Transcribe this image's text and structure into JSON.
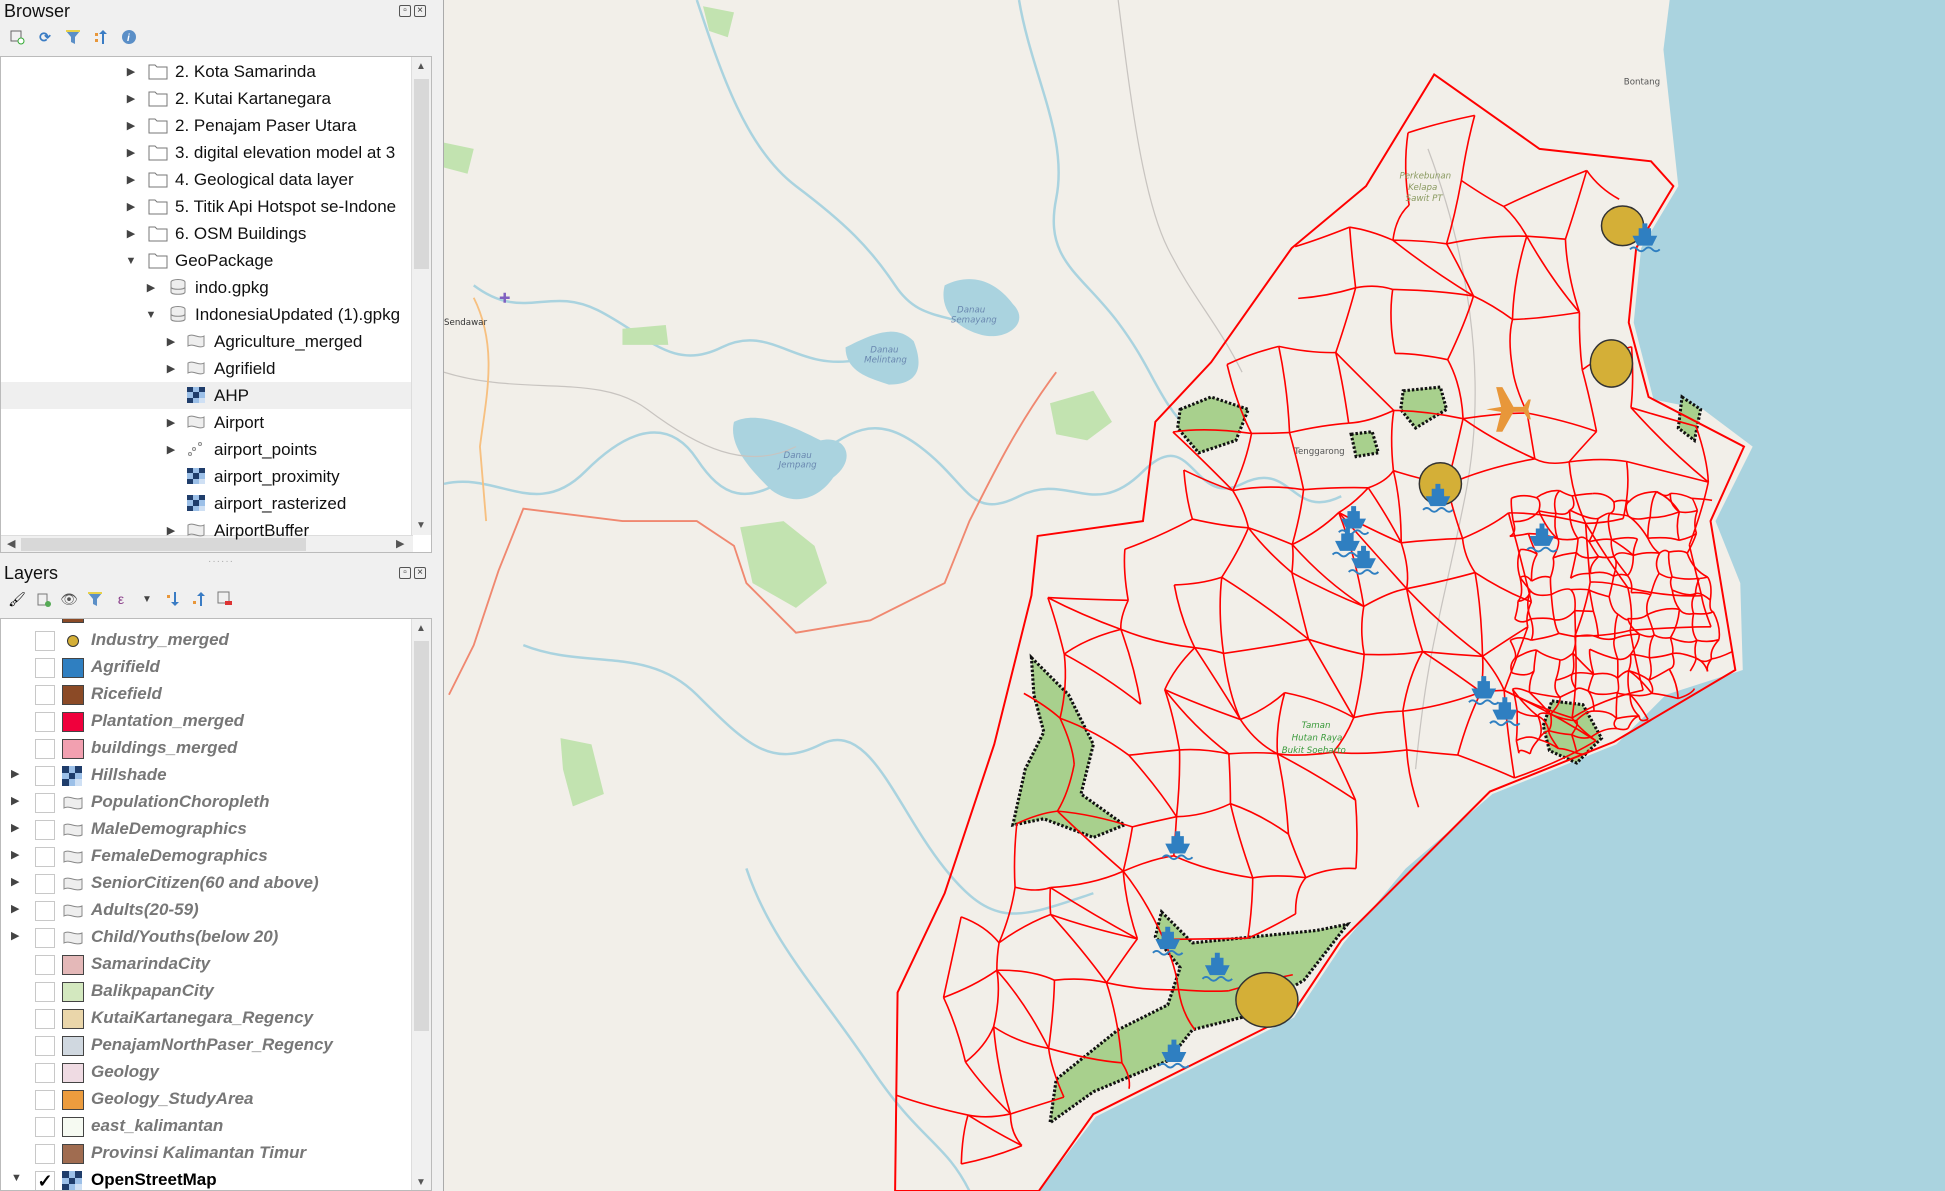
{
  "browser": {
    "title": "Browser",
    "toolbar": [
      "add-selected-icon",
      "refresh-icon",
      "filter-icon",
      "collapse-all-icon",
      "info-icon"
    ],
    "items": [
      {
        "label": "2. Kota Samarinda",
        "level": 0,
        "type": "folder",
        "expand": "closed"
      },
      {
        "label": "2. Kutai Kartanegara",
        "level": 0,
        "type": "folder",
        "expand": "closed"
      },
      {
        "label": "2. Penajam Paser Utara",
        "level": 0,
        "type": "folder",
        "expand": "closed"
      },
      {
        "label": "3. digital elevation model at 3",
        "level": 0,
        "type": "folder",
        "expand": "closed"
      },
      {
        "label": "4. Geological data layer",
        "level": 0,
        "type": "folder",
        "expand": "closed"
      },
      {
        "label": "5. Titik Api Hotspot se-Indone",
        "level": 0,
        "type": "folder",
        "expand": "closed"
      },
      {
        "label": "6. OSM Buildings",
        "level": 0,
        "type": "folder",
        "expand": "closed"
      },
      {
        "label": "GeoPackage",
        "level": 0,
        "type": "folder",
        "expand": "open"
      },
      {
        "label": "indo.gpkg",
        "level": 1,
        "type": "db",
        "expand": "closed"
      },
      {
        "label": "IndonesiaUpdated (1).gpkg",
        "level": 1,
        "type": "db",
        "expand": "open"
      },
      {
        "label": "Agriculture_merged",
        "level": 2,
        "type": "polygon",
        "expand": "closed"
      },
      {
        "label": "Agrifield",
        "level": 2,
        "type": "polygon",
        "expand": "closed"
      },
      {
        "label": "AHP",
        "level": 2,
        "type": "raster",
        "expand": "none",
        "selected": true
      },
      {
        "label": "Airport",
        "level": 2,
        "type": "polygon",
        "expand": "closed"
      },
      {
        "label": "airport_points",
        "level": 2,
        "type": "points",
        "expand": "closed"
      },
      {
        "label": "airport_proximity",
        "level": 2,
        "type": "raster",
        "expand": "none"
      },
      {
        "label": "airport_rasterized",
        "level": 2,
        "type": "raster",
        "expand": "none"
      },
      {
        "label": "AirportBuffer",
        "level": 2,
        "type": "polygon",
        "expand": "closed"
      }
    ]
  },
  "layers": {
    "title": "Layers",
    "toolbar": [
      "style-manager-icon",
      "add-group-icon",
      "visibility-icon",
      "filter-legend-icon",
      "expression-filter-icon",
      "dropdown-icon",
      "expand-all-icon",
      "collapse-all-icon",
      "remove-layer-icon"
    ],
    "items": [
      {
        "label": "Industry_merged",
        "symbol": "circle",
        "color": "#d4af37",
        "checked": false
      },
      {
        "label": "Agrifield",
        "symbol": "fill",
        "color": "#2f7fc1",
        "checked": false
      },
      {
        "label": "Ricefield",
        "symbol": "fill",
        "color": "#8b4a26",
        "checked": false
      },
      {
        "label": "Plantation_merged",
        "symbol": "fill",
        "color": "#f0003c",
        "checked": false
      },
      {
        "label": "buildings_merged",
        "symbol": "fill",
        "color": "#f2a0b0",
        "checked": false
      },
      {
        "label": "Hillshade",
        "symbol": "raster",
        "checked": false,
        "expand": "closed"
      },
      {
        "label": "PopulationChoropleth",
        "symbol": "group",
        "checked": false,
        "expand": "closed"
      },
      {
        "label": "MaleDemographics",
        "symbol": "group",
        "checked": false,
        "expand": "closed"
      },
      {
        "label": "FemaleDemographics",
        "symbol": "group",
        "checked": false,
        "expand": "closed"
      },
      {
        "label": "SeniorCitizen(60 and above)",
        "symbol": "group",
        "checked": false,
        "expand": "closed"
      },
      {
        "label": "Adults(20-59)",
        "symbol": "group",
        "checked": false,
        "expand": "closed"
      },
      {
        "label": "Child/Youths(below 20)",
        "symbol": "group",
        "checked": false,
        "expand": "closed"
      },
      {
        "label": "SamarindaCity",
        "symbol": "fill",
        "color": "#e4b8b8",
        "checked": false
      },
      {
        "label": "BalikpapanCity",
        "symbol": "fill",
        "color": "#d3e8bf",
        "checked": false
      },
      {
        "label": "KutaiKartanegara_Regency",
        "symbol": "fill",
        "color": "#ead6aa",
        "checked": false
      },
      {
        "label": "PenajamNorthPaser_Regency",
        "symbol": "fill",
        "color": "#d0d8e0",
        "checked": false
      },
      {
        "label": "Geology",
        "symbol": "fill",
        "color": "#efdbe3",
        "checked": false
      },
      {
        "label": "Geology_StudyArea",
        "symbol": "fill",
        "color": "#ec9c3e",
        "checked": false
      },
      {
        "label": "east_kalimantan",
        "symbol": "fill",
        "color": "#f6faf2",
        "checked": false
      },
      {
        "label": "Provinsi Kalimantan Timur",
        "symbol": "fill",
        "color": "#a06c50",
        "checked": true,
        "partial": false
      },
      {
        "label": "OpenStreetMap",
        "symbol": "raster",
        "checked": true,
        "expand": "open"
      }
    ]
  },
  "map": {
    "labels": {
      "bontang": "Bontang",
      "sendawar": "Sendawar",
      "danau_semayang": [
        "Danau",
        "Semayang"
      ],
      "danau_melintang": [
        "Danau",
        "Melintang"
      ],
      "danau_jempang": [
        "Danau",
        "Jempang"
      ],
      "perkebunan": [
        "Perkebunan",
        "Kelapa",
        "Sawit PT"
      ],
      "tenggarong": "Tenggarong",
      "taman": [
        "Taman",
        "Hutan Raya",
        "Bukit Soeharto"
      ]
    },
    "colors": {
      "land": "#f2efe9",
      "water": "#aad3df",
      "roads": "#ff0000",
      "agri": "#a8d08d",
      "industry": "#d4af37",
      "port": "#2f7fc1",
      "airport": "#e8973a"
    }
  }
}
